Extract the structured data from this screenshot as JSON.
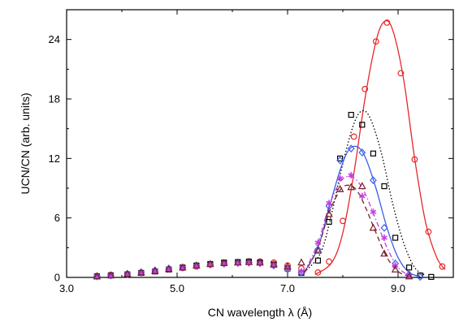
{
  "chart_data": {
    "type": "scatter",
    "xlabel": "CN wavelength λ (Å)",
    "ylabel": "UCN/CN (arb. units)",
    "xlim": [
      3.0,
      10.0
    ],
    "ylim": [
      0,
      27
    ],
    "x_ticks": [
      3.0,
      5.0,
      7.0,
      9.0
    ],
    "x_tick_labels": [
      "3.0",
      "5.0",
      "7.0",
      "9.0"
    ],
    "y_ticks": [
      0,
      6,
      12,
      18,
      24
    ],
    "y_tick_labels": [
      "0",
      "6",
      "12",
      "18",
      "24"
    ],
    "grid": false,
    "legend": "none",
    "series": [
      {
        "marker": "circle",
        "color": "#e8262a",
        "x": [
          3.55,
          3.8,
          4.1,
          4.35,
          4.6,
          4.85,
          5.1,
          5.35,
          5.6,
          5.85,
          6.1,
          6.3,
          6.5,
          6.75,
          7.0,
          7.25,
          7.55,
          7.75,
          8.0,
          8.2,
          8.4,
          8.6,
          8.8,
          9.05,
          9.3,
          9.55,
          9.8
        ],
        "y": [
          0.15,
          0.25,
          0.35,
          0.5,
          0.65,
          0.8,
          0.95,
          1.1,
          1.3,
          1.4,
          1.5,
          1.6,
          1.6,
          1.5,
          1.2,
          0.9,
          0.5,
          1.6,
          5.7,
          14.2,
          19.0,
          23.8,
          25.7,
          20.6,
          11.9,
          4.6,
          1.1
        ],
        "fit": {
          "line": "solid",
          "x": [
            7.5,
            7.8,
            8.0,
            8.2,
            8.4,
            8.6,
            8.75,
            8.9,
            9.1,
            9.3,
            9.5,
            9.7,
            9.85
          ],
          "y": [
            0.3,
            1.5,
            4.5,
            10.5,
            18.0,
            23.8,
            25.8,
            25.0,
            20.0,
            12.0,
            5.5,
            2.0,
            0.8
          ]
        }
      },
      {
        "marker": "square",
        "color": "#000000",
        "x": [
          3.55,
          3.8,
          4.1,
          4.35,
          4.6,
          4.85,
          5.1,
          5.35,
          5.6,
          5.85,
          6.1,
          6.3,
          6.5,
          6.75,
          7.0,
          7.25,
          7.55,
          7.75,
          7.95,
          8.15,
          8.35,
          8.55,
          8.75,
          8.95,
          9.2,
          9.4,
          9.6
        ],
        "y": [
          0.1,
          0.2,
          0.3,
          0.45,
          0.6,
          0.8,
          1.0,
          1.2,
          1.35,
          1.5,
          1.55,
          1.6,
          1.5,
          1.3,
          0.9,
          0.45,
          1.7,
          5.6,
          12.0,
          16.4,
          15.4,
          12.5,
          9.2,
          4.0,
          1.0,
          0.2,
          0.05
        ],
        "fit": {
          "line": "dotted",
          "x": [
            7.3,
            7.6,
            7.8,
            8.0,
            8.2,
            8.35,
            8.5,
            8.7,
            8.9,
            9.1,
            9.3,
            9.5
          ],
          "y": [
            0.5,
            2.5,
            6.5,
            11.5,
            15.5,
            16.8,
            16.0,
            12.5,
            7.5,
            3.5,
            1.0,
            0.2
          ]
        }
      },
      {
        "marker": "diamond",
        "color": "#3b5ee8",
        "x": [
          3.55,
          3.8,
          4.1,
          4.35,
          4.6,
          4.85,
          5.1,
          5.35,
          5.6,
          5.85,
          6.1,
          6.3,
          6.5,
          6.75,
          7.0,
          7.25,
          7.55,
          7.75,
          7.95,
          8.15,
          8.35,
          8.55,
          8.75,
          8.95,
          9.2,
          9.4
        ],
        "y": [
          0.1,
          0.2,
          0.35,
          0.5,
          0.7,
          0.9,
          1.0,
          1.2,
          1.3,
          1.4,
          1.5,
          1.5,
          1.45,
          1.2,
          0.8,
          0.5,
          2.8,
          7.2,
          11.8,
          13.0,
          12.6,
          9.8,
          5.0,
          1.4,
          0.3,
          0.05
        ],
        "fit": {
          "line": "solid",
          "x": [
            7.3,
            7.55,
            7.75,
            7.95,
            8.1,
            8.25,
            8.4,
            8.6,
            8.8,
            9.0,
            9.2,
            9.4
          ],
          "y": [
            0.5,
            3.0,
            7.0,
            10.8,
            12.8,
            13.2,
            12.2,
            9.0,
            5.0,
            2.0,
            0.5,
            0.1
          ]
        }
      },
      {
        "marker": "star",
        "color": "#c040e0",
        "x": [
          3.55,
          3.8,
          4.1,
          4.35,
          4.6,
          4.85,
          5.1,
          5.35,
          5.6,
          5.85,
          6.1,
          6.3,
          6.5,
          6.75,
          7.0,
          7.25,
          7.55,
          7.75,
          7.95,
          8.15,
          8.35,
          8.55,
          8.75,
          8.95,
          9.2
        ],
        "y": [
          0.1,
          0.2,
          0.3,
          0.45,
          0.6,
          0.8,
          0.95,
          1.1,
          1.25,
          1.35,
          1.4,
          1.45,
          1.4,
          1.2,
          0.9,
          0.6,
          3.5,
          7.5,
          10.0,
          10.3,
          8.2,
          6.6,
          4.0,
          1.2,
          0.2
        ],
        "fit": {
          "line": "dash-dot",
          "x": [
            7.3,
            7.55,
            7.75,
            7.95,
            8.1,
            8.25,
            8.4,
            8.6,
            8.8,
            9.0,
            9.2
          ],
          "y": [
            0.5,
            3.5,
            7.2,
            9.6,
            10.2,
            9.8,
            8.5,
            5.8,
            3.0,
            1.0,
            0.2
          ]
        }
      },
      {
        "marker": "triangle",
        "color": "#7a1f2b",
        "x": [
          3.55,
          3.8,
          4.1,
          4.35,
          4.6,
          4.85,
          5.1,
          5.35,
          5.6,
          5.85,
          6.1,
          6.3,
          6.5,
          6.75,
          7.0,
          7.25,
          7.55,
          7.75,
          7.95,
          8.15,
          8.35,
          8.55,
          8.75,
          8.95,
          9.2
        ],
        "y": [
          0.1,
          0.2,
          0.35,
          0.5,
          0.65,
          0.85,
          1.0,
          1.2,
          1.35,
          1.45,
          1.5,
          1.55,
          1.5,
          1.3,
          1.1,
          1.5,
          2.7,
          6.4,
          8.9,
          9.1,
          9.2,
          5.0,
          2.4,
          0.8,
          0.1
        ],
        "fit": {
          "line": "dashed",
          "x": [
            7.3,
            7.55,
            7.75,
            7.95,
            8.1,
            8.25,
            8.4,
            8.6,
            8.8,
            9.0,
            9.2
          ],
          "y": [
            0.4,
            3.0,
            6.5,
            8.8,
            9.3,
            8.8,
            7.2,
            4.5,
            2.0,
            0.6,
            0.1
          ]
        }
      }
    ]
  }
}
